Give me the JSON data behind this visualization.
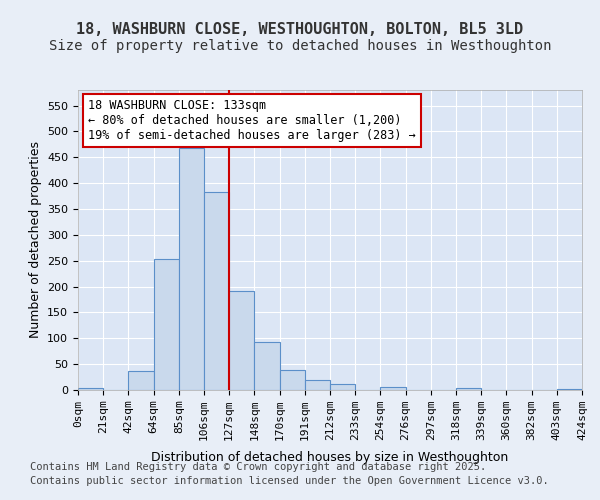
{
  "title_line1": "18, WASHBURN CLOSE, WESTHOUGHTON, BOLTON, BL5 3LD",
  "title_line2": "Size of property relative to detached houses in Westhoughton",
  "xlabel": "Distribution of detached houses by size in Westhoughton",
  "ylabel": "Number of detached properties",
  "bin_labels": [
    "0sqm",
    "21sqm",
    "42sqm",
    "64sqm",
    "85sqm",
    "106sqm",
    "127sqm",
    "148sqm",
    "170sqm",
    "191sqm",
    "212sqm",
    "233sqm",
    "254sqm",
    "276sqm",
    "297sqm",
    "318sqm",
    "339sqm",
    "360sqm",
    "382sqm",
    "403sqm",
    "424sqm"
  ],
  "bar_values": [
    3,
    0,
    37,
    253,
    467,
    383,
    192,
    93,
    38,
    20,
    12,
    0,
    5,
    0,
    0,
    4,
    0,
    0,
    0,
    2
  ],
  "bar_color": "#c9d9ec",
  "bar_edge_color": "#5b8fc9",
  "vline_x": 6,
  "vline_color": "#cc0000",
  "annotation_text": "18 WASHBURN CLOSE: 133sqm\n← 80% of detached houses are smaller (1,200)\n19% of semi-detached houses are larger (283) →",
  "annotation_box_color": "#ffffff",
  "annotation_box_edge": "#cc0000",
  "ylim": [
    0,
    580
  ],
  "yticks": [
    0,
    50,
    100,
    150,
    200,
    250,
    300,
    350,
    400,
    450,
    500,
    550
  ],
  "background_color": "#e8eef7",
  "plot_bg_color": "#dce6f5",
  "grid_color": "#ffffff",
  "footer_line1": "Contains HM Land Registry data © Crown copyright and database right 2025.",
  "footer_line2": "Contains public sector information licensed under the Open Government Licence v3.0.",
  "title_fontsize": 11,
  "subtitle_fontsize": 10,
  "axis_label_fontsize": 9,
  "tick_fontsize": 8,
  "annotation_fontsize": 8.5,
  "footer_fontsize": 7.5
}
